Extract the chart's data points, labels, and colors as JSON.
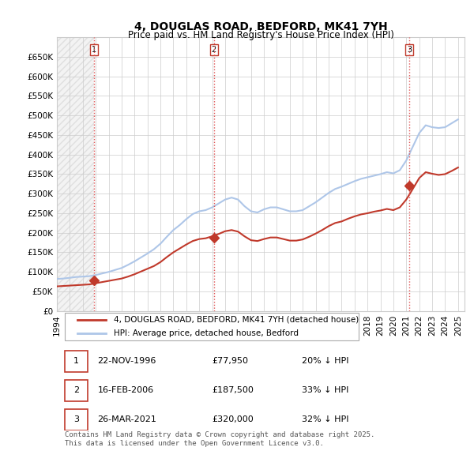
{
  "title": "4, DOUGLAS ROAD, BEDFORD, MK41 7YH",
  "subtitle": "Price paid vs. HM Land Registry's House Price Index (HPI)",
  "xlabel": "",
  "ylabel": "",
  "ylim": [
    0,
    700000
  ],
  "yticks": [
    0,
    50000,
    100000,
    150000,
    200000,
    250000,
    300000,
    350000,
    400000,
    450000,
    500000,
    550000,
    600000,
    650000
  ],
  "ytick_labels": [
    "£0",
    "£50K",
    "£100K",
    "£150K",
    "£200K",
    "£250K",
    "£300K",
    "£350K",
    "£400K",
    "£450K",
    "£500K",
    "£550K",
    "£600K",
    "£650K"
  ],
  "hpi_color": "#aec6e8",
  "price_color": "#c0392b",
  "vline_color": "#e05555",
  "background_color": "#ffffff",
  "grid_color": "#cccccc",
  "purchase_dates": [
    1996.896,
    2006.124,
    2021.233
  ],
  "purchase_prices": [
    77950,
    187500,
    320000
  ],
  "purchase_labels": [
    "1",
    "2",
    "3"
  ],
  "hpi_years": [
    1994.0,
    1994.5,
    1995.0,
    1995.5,
    1996.0,
    1996.5,
    1997.0,
    1997.5,
    1998.0,
    1998.5,
    1999.0,
    1999.5,
    2000.0,
    2000.5,
    2001.0,
    2001.5,
    2002.0,
    2002.5,
    2003.0,
    2003.5,
    2004.0,
    2004.5,
    2005.0,
    2005.5,
    2006.0,
    2006.5,
    2007.0,
    2007.5,
    2008.0,
    2008.5,
    2009.0,
    2009.5,
    2010.0,
    2010.5,
    2011.0,
    2011.5,
    2012.0,
    2012.5,
    2013.0,
    2013.5,
    2014.0,
    2014.5,
    2015.0,
    2015.5,
    2016.0,
    2016.5,
    2017.0,
    2017.5,
    2018.0,
    2018.5,
    2019.0,
    2019.5,
    2020.0,
    2020.5,
    2021.0,
    2021.5,
    2022.0,
    2022.5,
    2023.0,
    2023.5,
    2024.0,
    2024.5,
    2025.0
  ],
  "hpi_values": [
    82000,
    83000,
    85000,
    87000,
    88000,
    89000,
    92000,
    96000,
    100000,
    105000,
    110000,
    118000,
    127000,
    137000,
    147000,
    158000,
    172000,
    190000,
    207000,
    220000,
    235000,
    248000,
    255000,
    258000,
    265000,
    275000,
    285000,
    290000,
    285000,
    268000,
    255000,
    252000,
    260000,
    265000,
    265000,
    260000,
    255000,
    255000,
    258000,
    268000,
    278000,
    290000,
    302000,
    312000,
    318000,
    325000,
    332000,
    338000,
    342000,
    346000,
    350000,
    355000,
    352000,
    360000,
    385000,
    420000,
    455000,
    475000,
    470000,
    468000,
    470000,
    480000,
    490000
  ],
  "price_years": [
    1994.0,
    1994.5,
    1995.0,
    1995.5,
    1996.0,
    1996.5,
    1997.0,
    1997.5,
    1998.0,
    1998.5,
    1999.0,
    1999.5,
    2000.0,
    2000.5,
    2001.0,
    2001.5,
    2002.0,
    2002.5,
    2003.0,
    2003.5,
    2004.0,
    2004.5,
    2005.0,
    2005.5,
    2006.0,
    2006.5,
    2007.0,
    2007.5,
    2008.0,
    2008.5,
    2009.0,
    2009.5,
    2010.0,
    2010.5,
    2011.0,
    2011.5,
    2012.0,
    2012.5,
    2013.0,
    2013.5,
    2014.0,
    2014.5,
    2015.0,
    2015.5,
    2016.0,
    2016.5,
    2017.0,
    2017.5,
    2018.0,
    2018.5,
    2019.0,
    2019.5,
    2020.0,
    2020.5,
    2021.0,
    2021.5,
    2022.0,
    2022.5,
    2023.0,
    2023.5,
    2024.0,
    2024.5,
    2025.0
  ],
  "price_values": [
    63000,
    64000,
    65000,
    66000,
    67000,
    68000,
    71000,
    74000,
    77000,
    80000,
    83000,
    88000,
    94000,
    101000,
    108000,
    115000,
    125000,
    138000,
    150000,
    160000,
    170000,
    179000,
    184000,
    186000,
    191000,
    197000,
    204000,
    207000,
    203000,
    191000,
    181000,
    179000,
    184000,
    188000,
    188000,
    184000,
    180000,
    180000,
    183000,
    190000,
    198000,
    207000,
    217000,
    225000,
    229000,
    236000,
    242000,
    247000,
    250000,
    254000,
    257000,
    261000,
    258000,
    265000,
    285000,
    312000,
    340000,
    355000,
    351000,
    348000,
    350000,
    358000,
    367000
  ],
  "legend_labels": [
    "4, DOUGLAS ROAD, BEDFORD, MK41 7YH (detached house)",
    "HPI: Average price, detached house, Bedford"
  ],
  "table_data": [
    {
      "num": "1",
      "date": "22-NOV-1996",
      "price": "£77,950",
      "hpi": "20% ↓ HPI"
    },
    {
      "num": "2",
      "date": "16-FEB-2006",
      "price": "£187,500",
      "hpi": "33% ↓ HPI"
    },
    {
      "num": "3",
      "date": "26-MAR-2021",
      "price": "£320,000",
      "hpi": "32% ↓ HPI"
    }
  ],
  "footer_text": "Contains HM Land Registry data © Crown copyright and database right 2025.\nThis data is licensed under the Open Government Licence v3.0.",
  "x_start": 1994,
  "x_end": 2025.5,
  "xticks": [
    1994,
    1995,
    1996,
    1997,
    1998,
    1999,
    2000,
    2001,
    2002,
    2003,
    2004,
    2005,
    2006,
    2007,
    2008,
    2009,
    2010,
    2011,
    2012,
    2013,
    2014,
    2015,
    2016,
    2017,
    2018,
    2019,
    2020,
    2021,
    2022,
    2023,
    2024,
    2025
  ]
}
